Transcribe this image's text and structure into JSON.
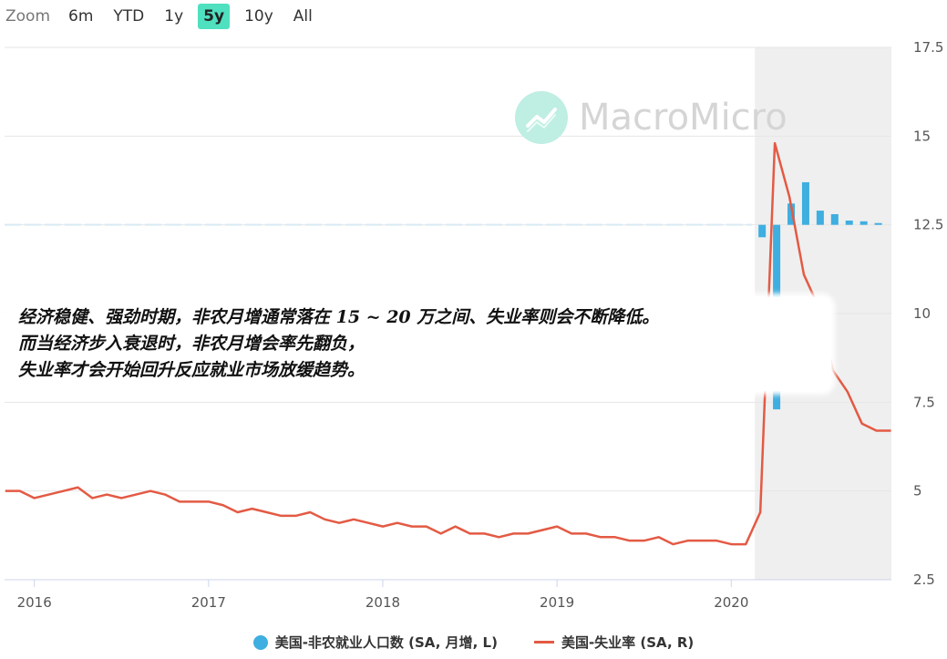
{
  "zoom": {
    "label": "Zoom",
    "options": [
      "6m",
      "YTD",
      "1y",
      "5y",
      "10y",
      "All"
    ],
    "active": "5y"
  },
  "watermark": {
    "text": "MacroMicro"
  },
  "annotation": {
    "lines": [
      "经济稳健、强劲时期，非农月增通常落在 15 ~ 20 万之间、失业率则会不断降低。",
      "而当经济步入衰退时，非农月增会率先翻负，",
      "失业率才会开始回升反应就业市场放缓趋势。"
    ]
  },
  "legend": {
    "bar_series": "美国-非农就业人口数 (SA, 月增, L)",
    "line_series": "美国-失业率 (SA, R)"
  },
  "colors": {
    "bar": "#3faee0",
    "line": "#e35a44",
    "shade": "#efefef",
    "zoom_active": "#4fe0c0"
  },
  "chart_data": {
    "type": "bar+line",
    "x_ticks": [
      "2016",
      "2017",
      "2018",
      "2019",
      "2020"
    ],
    "x_range": [
      "2015-11",
      "2020-12"
    ],
    "right_axis": {
      "ticks": [
        "2.5",
        "5",
        "7.5",
        "10",
        "12.5",
        "15",
        "17.5"
      ],
      "range": [
        2.5,
        17.5
      ]
    },
    "shaded_period": [
      "2020-02",
      "2020-12"
    ],
    "series": [
      {
        "name": "美国-失业率 (SA, R)",
        "type": "line",
        "points": [
          [
            "2015-11",
            5.0
          ],
          [
            "2015-12",
            5.0
          ],
          [
            "2016-01",
            4.8
          ],
          [
            "2016-02",
            4.9
          ],
          [
            "2016-03",
            5.0
          ],
          [
            "2016-04",
            5.1
          ],
          [
            "2016-05",
            4.8
          ],
          [
            "2016-06",
            4.9
          ],
          [
            "2016-07",
            4.8
          ],
          [
            "2016-08",
            4.9
          ],
          [
            "2016-09",
            5.0
          ],
          [
            "2016-10",
            4.9
          ],
          [
            "2016-11",
            4.7
          ],
          [
            "2016-12",
            4.7
          ],
          [
            "2017-01",
            4.7
          ],
          [
            "2017-02",
            4.6
          ],
          [
            "2017-03",
            4.4
          ],
          [
            "2017-04",
            4.5
          ],
          [
            "2017-05",
            4.4
          ],
          [
            "2017-06",
            4.3
          ],
          [
            "2017-07",
            4.3
          ],
          [
            "2017-08",
            4.4
          ],
          [
            "2017-09",
            4.2
          ],
          [
            "2017-10",
            4.1
          ],
          [
            "2017-11",
            4.2
          ],
          [
            "2017-12",
            4.1
          ],
          [
            "2018-01",
            4.0
          ],
          [
            "2018-02",
            4.1
          ],
          [
            "2018-03",
            4.0
          ],
          [
            "2018-04",
            4.0
          ],
          [
            "2018-05",
            3.8
          ],
          [
            "2018-06",
            4.0
          ],
          [
            "2018-07",
            3.8
          ],
          [
            "2018-08",
            3.8
          ],
          [
            "2018-09",
            3.7
          ],
          [
            "2018-10",
            3.8
          ],
          [
            "2018-11",
            3.8
          ],
          [
            "2018-12",
            3.9
          ],
          [
            "2019-01",
            4.0
          ],
          [
            "2019-02",
            3.8
          ],
          [
            "2019-03",
            3.8
          ],
          [
            "2019-04",
            3.7
          ],
          [
            "2019-05",
            3.7
          ],
          [
            "2019-06",
            3.6
          ],
          [
            "2019-07",
            3.6
          ],
          [
            "2019-08",
            3.7
          ],
          [
            "2019-09",
            3.5
          ],
          [
            "2019-10",
            3.6
          ],
          [
            "2019-11",
            3.6
          ],
          [
            "2019-12",
            3.6
          ],
          [
            "2020-01",
            3.5
          ],
          [
            "2020-02",
            3.5
          ],
          [
            "2020-03",
            4.4
          ],
          [
            "2020-04",
            14.8
          ],
          [
            "2020-05",
            13.3
          ],
          [
            "2020-06",
            11.1
          ],
          [
            "2020-07",
            10.2
          ],
          [
            "2020-08",
            8.4
          ],
          [
            "2020-09",
            7.8
          ],
          [
            "2020-10",
            6.9
          ],
          [
            "2020-11",
            6.7
          ],
          [
            "2020-12",
            6.7
          ]
        ]
      },
      {
        "name": "美国-非农就业人口数 (SA, 月增, L)",
        "type": "bar",
        "baseline": 12.5,
        "points": [
          [
            "2020-03",
            12.15
          ],
          [
            "2020-04",
            7.3
          ],
          [
            "2020-05",
            13.1
          ],
          [
            "2020-06",
            13.7
          ],
          [
            "2020-07",
            12.9
          ],
          [
            "2020-08",
            12.8
          ],
          [
            "2020-09",
            12.62
          ],
          [
            "2020-10",
            12.6
          ],
          [
            "2020-11",
            12.55
          ]
        ]
      }
    ]
  }
}
